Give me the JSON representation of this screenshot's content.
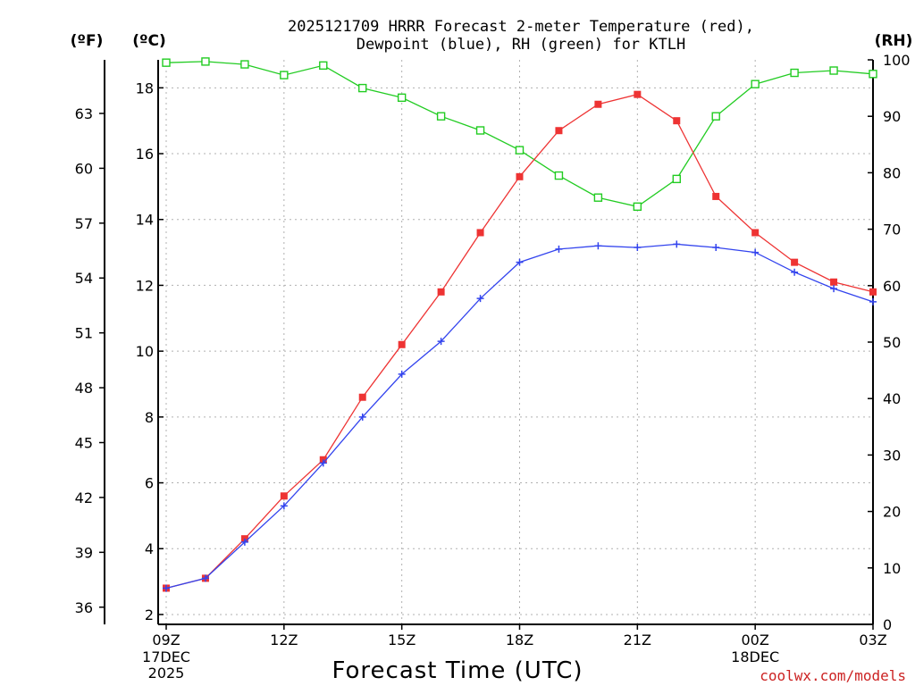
{
  "colors": {
    "temp": "#ee3333",
    "dew": "#3344ee",
    "rh": "#22cc22",
    "credit": "#cc2222"
  },
  "chart_data": {
    "type": "line",
    "title_line1": "2025121709 HRRR Forecast 2-meter Temperature (red),",
    "title_line2": "Dewpoint (blue), RH (green) for KTLH",
    "xlabel": "Forecast Time (UTC)",
    "unit_f": "(ºF)",
    "unit_c": "(ºC)",
    "unit_rh": "(RH)",
    "credit": "coolwx.com/models",
    "x_ticks": [
      {
        "hour": 0,
        "label": "09Z"
      },
      {
        "hour": 3,
        "label": "12Z"
      },
      {
        "hour": 6,
        "label": "15Z"
      },
      {
        "hour": 9,
        "label": "18Z"
      },
      {
        "hour": 12,
        "label": "21Z"
      },
      {
        "hour": 15,
        "label": "00Z"
      },
      {
        "hour": 18,
        "label": "03Z"
      }
    ],
    "date_labels": [
      {
        "hour": 0,
        "lines": [
          "17DEC",
          "2025"
        ]
      },
      {
        "hour": 15,
        "lines": [
          "18DEC"
        ]
      }
    ],
    "xlim": [
      0,
      18
    ],
    "ylim_c": [
      1.7,
      18.85
    ],
    "ylim_rh": [
      0,
      100
    ],
    "y_ticks_c": [
      2,
      4,
      6,
      8,
      10,
      12,
      14,
      16,
      18
    ],
    "y_ticks_f": [
      36,
      39,
      42,
      45,
      48,
      51,
      54,
      57,
      60,
      63
    ],
    "y_ticks_rh": [
      0,
      10,
      20,
      30,
      40,
      50,
      60,
      70,
      80,
      90,
      100
    ],
    "hours": [
      0,
      1,
      2,
      3,
      4,
      5,
      6,
      7,
      8,
      9,
      10,
      11,
      12,
      13,
      14,
      15,
      16,
      17,
      18
    ],
    "series": [
      {
        "name": "2-meter Temperature",
        "axis": "c",
        "color_key": "temp",
        "marker": "filled-square",
        "values": [
          2.8,
          3.1,
          4.3,
          5.6,
          6.7,
          8.6,
          10.2,
          11.8,
          13.6,
          15.3,
          16.7,
          17.5,
          17.8,
          17.0,
          14.7,
          13.6,
          12.7,
          12.1,
          11.8
        ]
      },
      {
        "name": "Dewpoint",
        "axis": "c",
        "color_key": "dew",
        "marker": "plus",
        "values": [
          2.8,
          3.1,
          4.2,
          5.3,
          6.6,
          8.0,
          9.3,
          10.3,
          11.6,
          12.7,
          13.1,
          13.2,
          13.15,
          13.25,
          13.15,
          13.0,
          12.4,
          11.9,
          11.5
        ]
      },
      {
        "name": "RH",
        "axis": "rh",
        "color_key": "rh",
        "marker": "open-square",
        "values": [
          99.5,
          99.7,
          99.2,
          97.3,
          99.0,
          95.0,
          93.3,
          90.0,
          87.5,
          84.0,
          79.5,
          75.6,
          74.0,
          78.9,
          90.0,
          95.7,
          97.7,
          98.1,
          97.5
        ]
      }
    ]
  }
}
